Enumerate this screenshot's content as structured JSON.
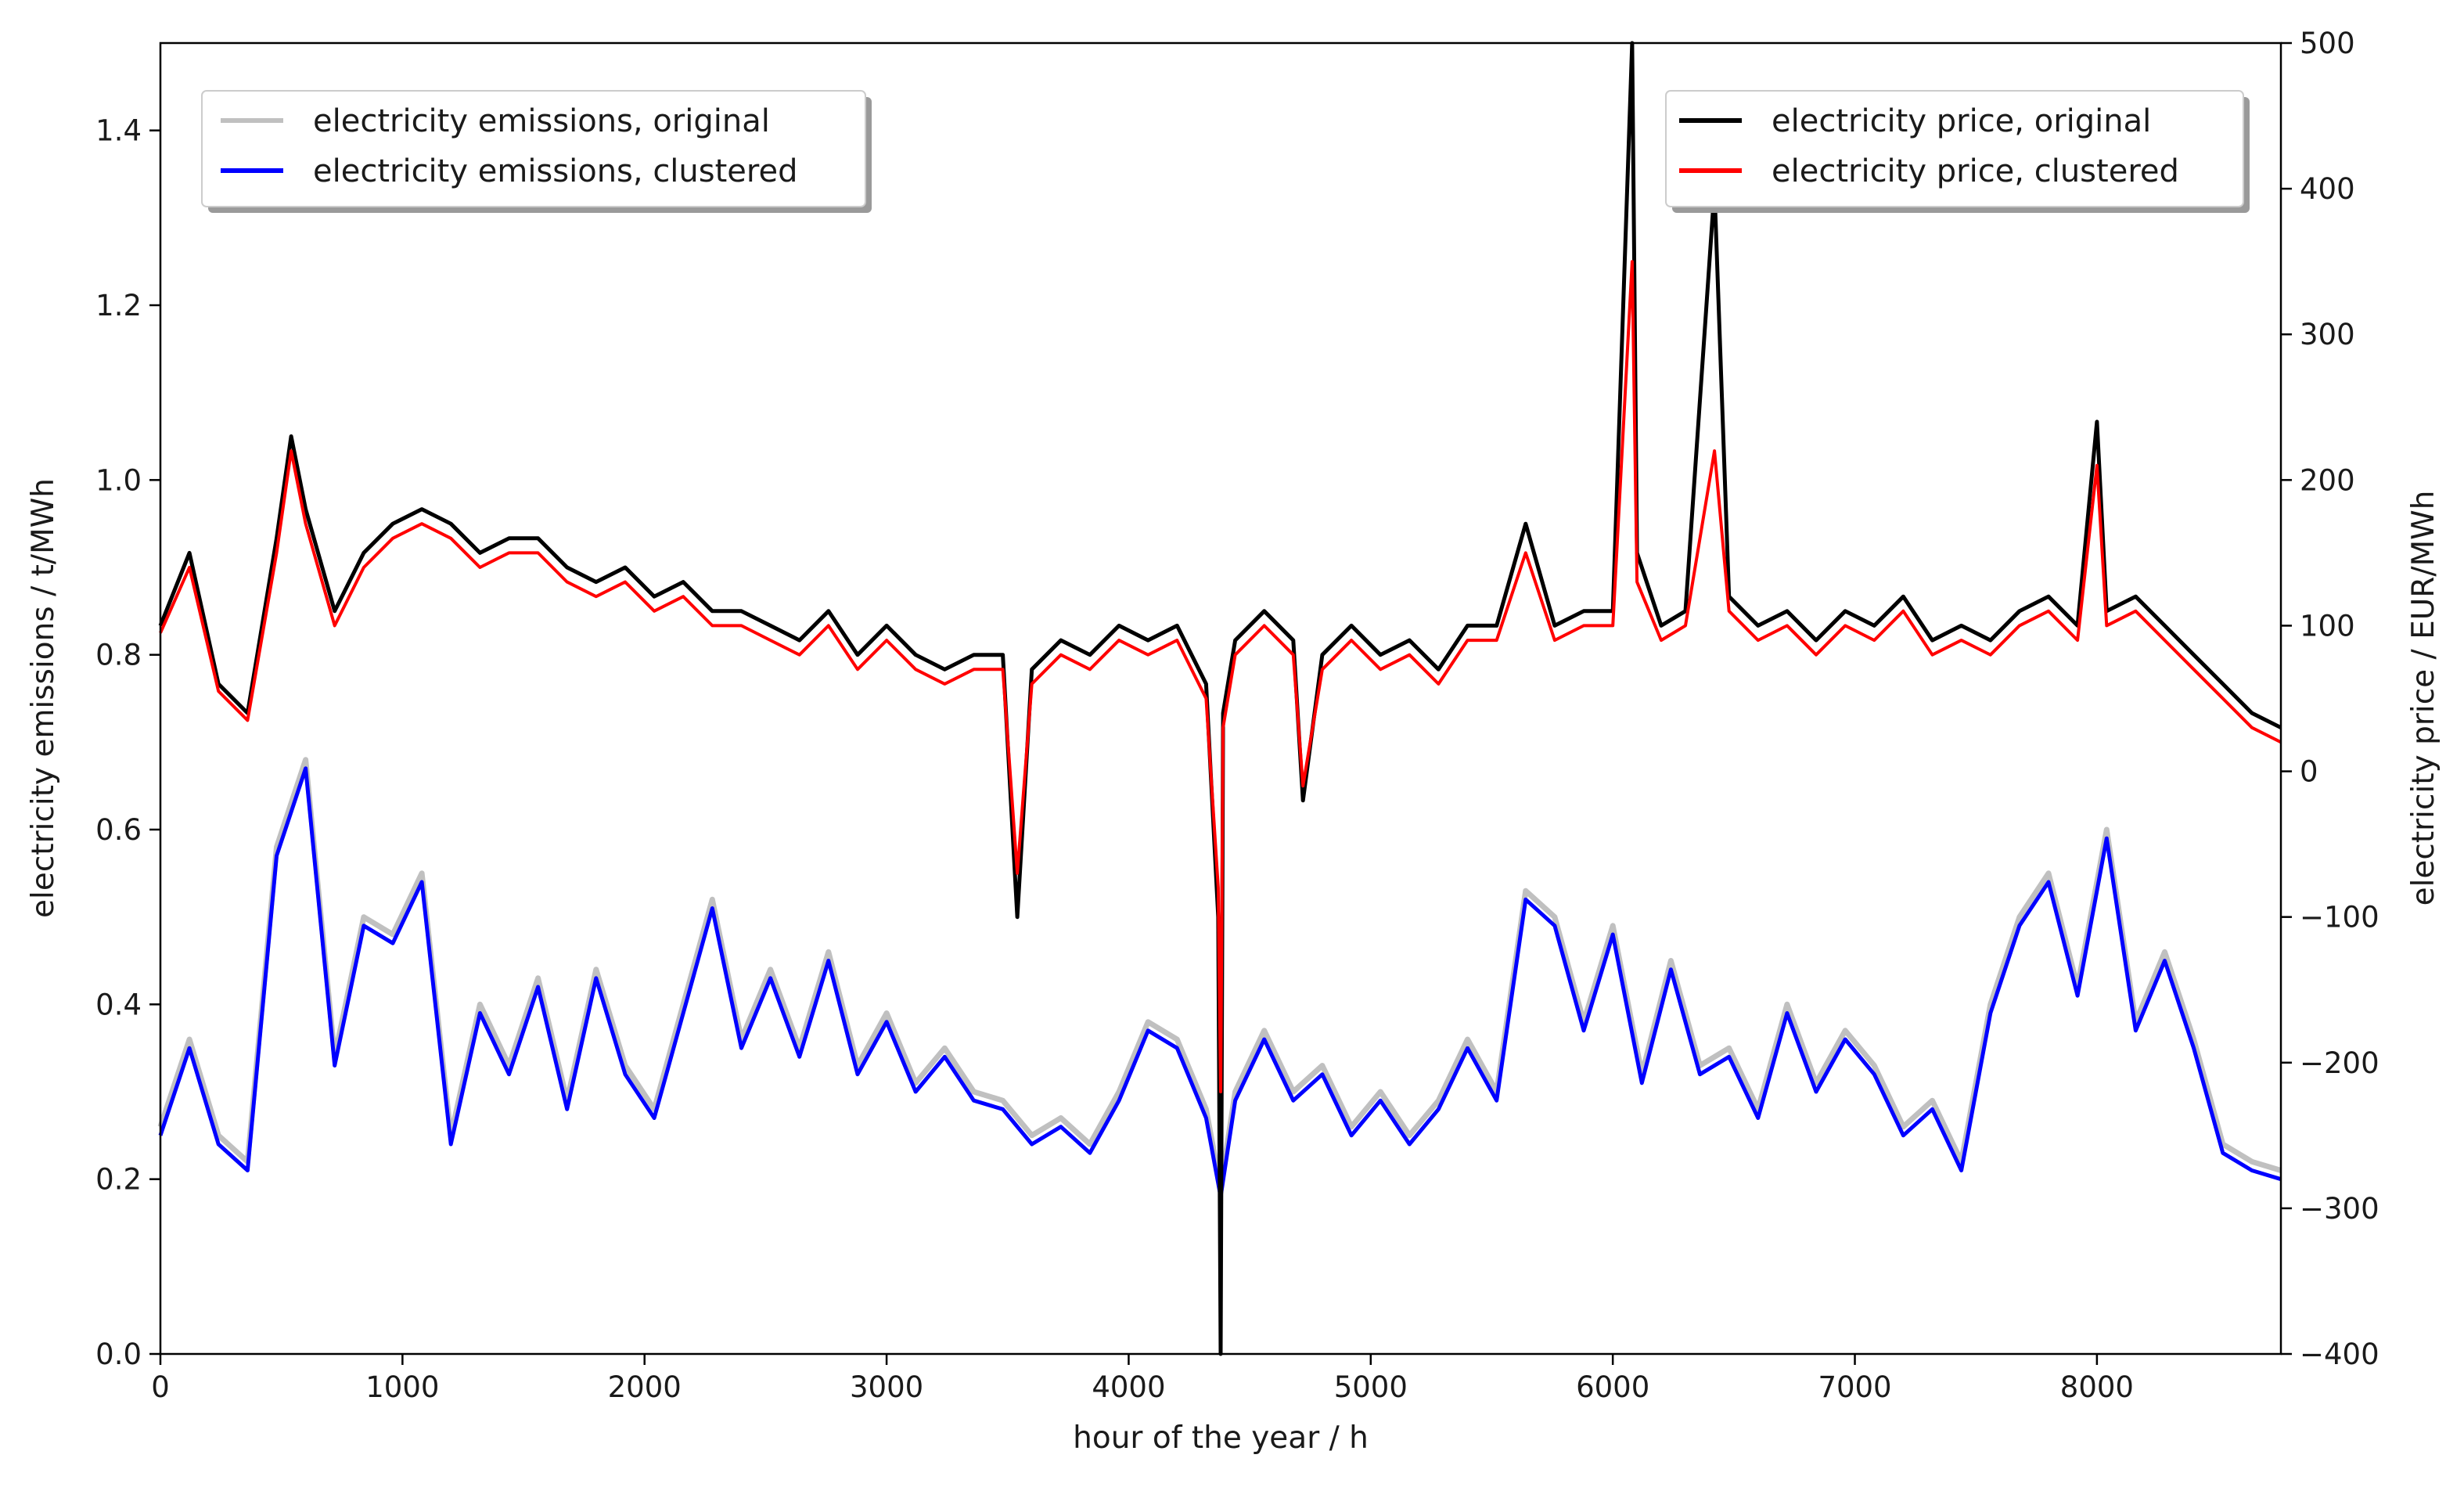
{
  "chart_data": {
    "type": "line",
    "title": "",
    "xlabel": "hour of the year / h",
    "ylabel": "electricity emissions / t/MWh",
    "y2label": "electricity price / EUR/MWh",
    "xlim": [
      0,
      8760
    ],
    "ylim": [
      0,
      1.5
    ],
    "y2lim": [
      -400,
      500
    ],
    "xticks": [
      "0",
      "1000",
      "2000",
      "3000",
      "4000",
      "5000",
      "6000",
      "7000",
      "8000"
    ],
    "yticks": [
      "0.0",
      "0.2",
      "0.4",
      "0.6",
      "0.8",
      "1.0",
      "1.2",
      "1.4"
    ],
    "y2ticks": [
      "−400",
      "−300",
      "−200",
      "−100",
      "0",
      "100",
      "200",
      "300",
      "400",
      "500"
    ],
    "legend_left": {
      "placement": "top-left",
      "entries": [
        "electricity emissions, original",
        "electricity emissions, clustered"
      ]
    },
    "legend_right": {
      "placement": "top-right",
      "entries": [
        "electricity price, original",
        "electricity price, clustered"
      ]
    },
    "series": [
      {
        "name": "electricity emissions, original",
        "axis": "left",
        "color": "#c0c0c0",
        "x": [
          0,
          120,
          240,
          360,
          480,
          600,
          720,
          840,
          960,
          1080,
          1200,
          1320,
          1440,
          1560,
          1680,
          1800,
          1920,
          2040,
          2160,
          2280,
          2400,
          2520,
          2640,
          2760,
          2880,
          3000,
          3120,
          3240,
          3360,
          3480,
          3600,
          3720,
          3840,
          3960,
          4080,
          4200,
          4320,
          4380,
          4440,
          4560,
          4680,
          4800,
          4920,
          5040,
          5160,
          5280,
          5400,
          5520,
          5640,
          5760,
          5880,
          6000,
          6120,
          6240,
          6360,
          6480,
          6600,
          6720,
          6840,
          6960,
          7080,
          7200,
          7320,
          7440,
          7560,
          7680,
          7800,
          7920,
          8040,
          8160,
          8280,
          8400,
          8520,
          8640,
          8760
        ],
        "y": [
          0.26,
          0.36,
          0.25,
          0.22,
          0.58,
          0.68,
          0.34,
          0.5,
          0.48,
          0.55,
          0.25,
          0.4,
          0.33,
          0.43,
          0.29,
          0.44,
          0.33,
          0.28,
          0.4,
          0.52,
          0.36,
          0.44,
          0.35,
          0.46,
          0.33,
          0.39,
          0.31,
          0.35,
          0.3,
          0.29,
          0.25,
          0.27,
          0.24,
          0.3,
          0.38,
          0.36,
          0.28,
          0.19,
          0.3,
          0.37,
          0.3,
          0.33,
          0.26,
          0.3,
          0.25,
          0.29,
          0.36,
          0.3,
          0.53,
          0.5,
          0.38,
          0.49,
          0.32,
          0.45,
          0.33,
          0.35,
          0.28,
          0.4,
          0.31,
          0.37,
          0.33,
          0.26,
          0.29,
          0.22,
          0.4,
          0.5,
          0.55,
          0.42,
          0.6,
          0.38,
          0.46,
          0.36,
          0.24,
          0.22,
          0.21
        ]
      },
      {
        "name": "electricity emissions, clustered",
        "axis": "left",
        "color": "#0000ff",
        "x": [
          0,
          120,
          240,
          360,
          480,
          600,
          720,
          840,
          960,
          1080,
          1200,
          1320,
          1440,
          1560,
          1680,
          1800,
          1920,
          2040,
          2160,
          2280,
          2400,
          2520,
          2640,
          2760,
          2880,
          3000,
          3120,
          3240,
          3360,
          3480,
          3600,
          3720,
          3840,
          3960,
          4080,
          4200,
          4320,
          4380,
          4440,
          4560,
          4680,
          4800,
          4920,
          5040,
          5160,
          5280,
          5400,
          5520,
          5640,
          5760,
          5880,
          6000,
          6120,
          6240,
          6360,
          6480,
          6600,
          6720,
          6840,
          6960,
          7080,
          7200,
          7320,
          7440,
          7560,
          7680,
          7800,
          7920,
          8040,
          8160,
          8280,
          8400,
          8520,
          8640,
          8760
        ],
        "y": [
          0.25,
          0.35,
          0.24,
          0.21,
          0.57,
          0.67,
          0.33,
          0.49,
          0.47,
          0.54,
          0.24,
          0.39,
          0.32,
          0.42,
          0.28,
          0.43,
          0.32,
          0.27,
          0.39,
          0.51,
          0.35,
          0.43,
          0.34,
          0.45,
          0.32,
          0.38,
          0.3,
          0.34,
          0.29,
          0.28,
          0.24,
          0.26,
          0.23,
          0.29,
          0.37,
          0.35,
          0.27,
          0.18,
          0.29,
          0.36,
          0.29,
          0.32,
          0.25,
          0.29,
          0.24,
          0.28,
          0.35,
          0.29,
          0.52,
          0.49,
          0.37,
          0.48,
          0.31,
          0.44,
          0.32,
          0.34,
          0.27,
          0.39,
          0.3,
          0.36,
          0.32,
          0.25,
          0.28,
          0.21,
          0.39,
          0.49,
          0.54,
          0.41,
          0.59,
          0.37,
          0.45,
          0.35,
          0.23,
          0.21,
          0.2
        ]
      },
      {
        "name": "electricity price, original",
        "axis": "right",
        "color": "#000000",
        "x": [
          0,
          120,
          240,
          360,
          480,
          540,
          600,
          720,
          840,
          960,
          1080,
          1200,
          1320,
          1440,
          1560,
          1680,
          1800,
          1920,
          2040,
          2160,
          2280,
          2400,
          2520,
          2640,
          2760,
          2880,
          3000,
          3120,
          3240,
          3360,
          3480,
          3540,
          3600,
          3720,
          3840,
          3960,
          4080,
          4200,
          4320,
          4370,
          4380,
          4390,
          4440,
          4560,
          4680,
          4720,
          4800,
          4920,
          5040,
          5160,
          5280,
          5400,
          5520,
          5640,
          5760,
          5880,
          6000,
          6080,
          6100,
          6200,
          6300,
          6420,
          6480,
          6600,
          6720,
          6840,
          6960,
          7080,
          7200,
          7320,
          7440,
          7560,
          7680,
          7800,
          7920,
          8000,
          8040,
          8160,
          8280,
          8400,
          8520,
          8640,
          8760
        ],
        "y": [
          100,
          150,
          60,
          40,
          160,
          230,
          180,
          110,
          150,
          170,
          180,
          170,
          150,
          160,
          160,
          140,
          130,
          140,
          120,
          130,
          110,
          110,
          100,
          90,
          110,
          80,
          100,
          80,
          70,
          80,
          80,
          -100,
          70,
          90,
          80,
          100,
          90,
          100,
          60,
          -100,
          -400,
          40,
          90,
          110,
          90,
          -20,
          80,
          100,
          80,
          90,
          70,
          100,
          100,
          170,
          100,
          110,
          110,
          500,
          150,
          100,
          110,
          400,
          120,
          100,
          110,
          90,
          110,
          100,
          120,
          90,
          100,
          90,
          110,
          120,
          100,
          240,
          110,
          120,
          100,
          80,
          60,
          40,
          30
        ]
      },
      {
        "name": "electricity price, clustered",
        "axis": "right",
        "color": "#ff0000",
        "x": [
          0,
          120,
          240,
          360,
          480,
          540,
          600,
          720,
          840,
          960,
          1080,
          1200,
          1320,
          1440,
          1560,
          1680,
          1800,
          1920,
          2040,
          2160,
          2280,
          2400,
          2520,
          2640,
          2760,
          2880,
          3000,
          3120,
          3240,
          3360,
          3480,
          3540,
          3600,
          3720,
          3840,
          3960,
          4080,
          4200,
          4320,
          4370,
          4380,
          4390,
          4440,
          4560,
          4680,
          4720,
          4800,
          4920,
          5040,
          5160,
          5280,
          5400,
          5520,
          5640,
          5760,
          5880,
          6000,
          6080,
          6100,
          6200,
          6300,
          6420,
          6480,
          6600,
          6720,
          6840,
          6960,
          7080,
          7200,
          7320,
          7440,
          7560,
          7680,
          7800,
          7920,
          8000,
          8040,
          8160,
          8280,
          8400,
          8520,
          8640,
          8760
        ],
        "y": [
          95,
          140,
          55,
          35,
          150,
          220,
          170,
          100,
          140,
          160,
          170,
          160,
          140,
          150,
          150,
          130,
          120,
          130,
          110,
          120,
          100,
          100,
          90,
          80,
          100,
          70,
          90,
          70,
          60,
          70,
          70,
          -70,
          60,
          80,
          70,
          90,
          80,
          90,
          50,
          -80,
          -220,
          30,
          80,
          100,
          80,
          -10,
          70,
          90,
          70,
          80,
          60,
          90,
          90,
          150,
          90,
          100,
          100,
          350,
          130,
          90,
          100,
          220,
          110,
          90,
          100,
          80,
          100,
          90,
          110,
          80,
          90,
          80,
          100,
          110,
          90,
          210,
          100,
          110,
          90,
          70,
          50,
          30,
          20
        ]
      }
    ]
  }
}
